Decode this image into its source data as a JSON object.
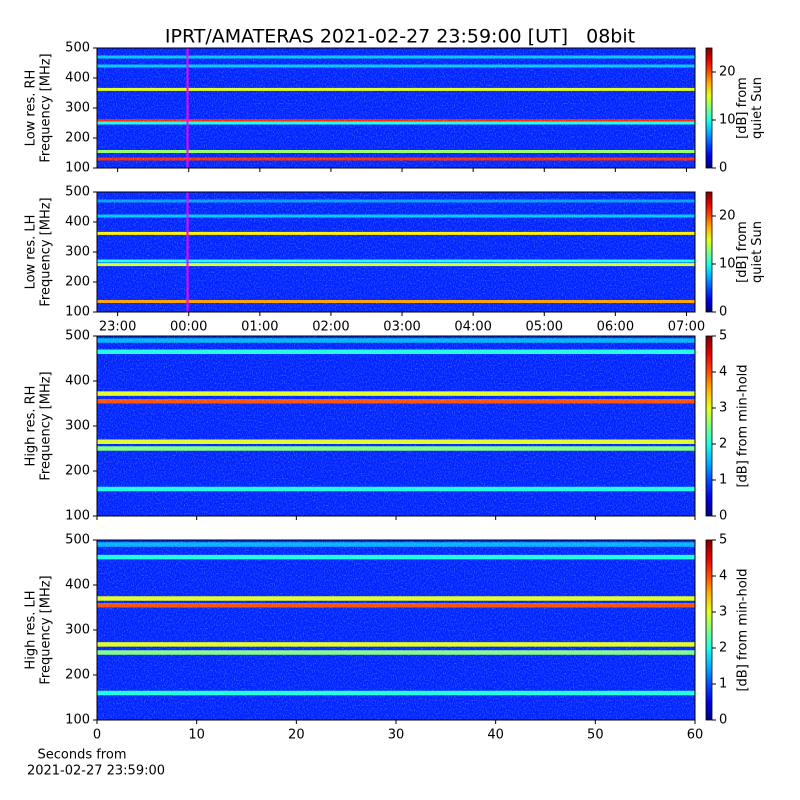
{
  "chart_data": [
    {
      "type": "heatmap",
      "title": "IPRT/AMATERAS 2021-02-27 23:59:00 [UT]   08bit",
      "ylabel": [
        "Low res. RH",
        "Frequency [MHz]"
      ],
      "xlim": [
        -1.29,
        7.12
      ],
      "xticks": [
        {
          "value": -1,
          "label": "23:00"
        },
        {
          "value": 0,
          "label": "00:00"
        },
        {
          "value": 1,
          "label": "01:00"
        },
        {
          "value": 2,
          "label": "02:00"
        },
        {
          "value": 3,
          "label": "03:00"
        },
        {
          "value": 4,
          "label": "04:00"
        },
        {
          "value": 5,
          "label": "05:00"
        },
        {
          "value": 6,
          "label": "06:00"
        },
        {
          "value": 7,
          "label": "07:00"
        }
      ],
      "show_xtick_labels": false,
      "marker_x": -0.017,
      "marker_color": "#ff00ff",
      "ylim": [
        100,
        500
      ],
      "yticks": [
        100,
        200,
        300,
        400,
        500
      ],
      "clim": [
        0,
        25
      ],
      "cticks": [
        0,
        10,
        20
      ],
      "clabel": [
        "[dB] from",
        "quiet Sun"
      ],
      "background": 4,
      "bands": [
        {
          "freq": 130,
          "level": 21
        },
        {
          "freq": 155,
          "level": 13
        },
        {
          "freq": 258,
          "level": 21
        },
        {
          "freq": 250,
          "level": 10
        },
        {
          "freq": 362,
          "level": 15
        },
        {
          "freq": 440,
          "level": 8
        },
        {
          "freq": 470,
          "level": 8
        }
      ]
    },
    {
      "type": "heatmap",
      "ylabel": [
        "Low res. LH",
        "Frequency [MHz]"
      ],
      "xlim": [
        -1.29,
        7.12
      ],
      "xticks": [
        {
          "value": -1,
          "label": "23:00"
        },
        {
          "value": 0,
          "label": "00:00"
        },
        {
          "value": 1,
          "label": "01:00"
        },
        {
          "value": 2,
          "label": "02:00"
        },
        {
          "value": 3,
          "label": "03:00"
        },
        {
          "value": 4,
          "label": "04:00"
        },
        {
          "value": 5,
          "label": "05:00"
        },
        {
          "value": 6,
          "label": "06:00"
        },
        {
          "value": 7,
          "label": "07:00"
        }
      ],
      "show_xtick_labels": true,
      "marker_x": -0.017,
      "marker_color": "#ff00ff",
      "ylim": [
        100,
        500
      ],
      "yticks": [
        100,
        200,
        300,
        400,
        500
      ],
      "clim": [
        0,
        25
      ],
      "cticks": [
        0,
        10,
        20
      ],
      "clabel": [
        "[dB] from",
        "quiet Sun"
      ],
      "background": 4,
      "bands": [
        {
          "freq": 135,
          "level": 18
        },
        {
          "freq": 258,
          "level": 15
        },
        {
          "freq": 270,
          "level": 10
        },
        {
          "freq": 362,
          "level": 16
        },
        {
          "freq": 420,
          "level": 8
        },
        {
          "freq": 470,
          "level": 7
        }
      ]
    },
    {
      "type": "heatmap",
      "ylabel": [
        "High res. RH",
        "Frequency [MHz]"
      ],
      "xlim": [
        0,
        60
      ],
      "xticks": [
        0,
        10,
        20,
        30,
        40,
        50,
        60
      ],
      "show_xtick_labels": false,
      "ylim": [
        100,
        500
      ],
      "yticks": [
        100,
        200,
        300,
        400,
        500
      ],
      "clim": [
        0,
        5
      ],
      "cticks": [
        0,
        1,
        2,
        3,
        4,
        5
      ],
      "clabel": [
        "[dB] from min-hold"
      ],
      "background": 0.8,
      "bands": [
        {
          "freq": 160,
          "level": 2
        },
        {
          "freq": 250,
          "level": 2.5
        },
        {
          "freq": 265,
          "level": 3
        },
        {
          "freq": 355,
          "level": 4
        },
        {
          "freq": 372,
          "level": 3
        },
        {
          "freq": 465,
          "level": 2
        },
        {
          "freq": 490,
          "level": 1.5
        }
      ]
    },
    {
      "type": "heatmap",
      "ylabel": [
        "High res. LH",
        "Frequency [MHz]"
      ],
      "xlim": [
        0,
        60
      ],
      "xticks": [
        0,
        10,
        20,
        30,
        40,
        50,
        60
      ],
      "show_xtick_labels": true,
      "xlabel": [
        "Seconds from",
        "2021-02-27 23:59:00"
      ],
      "ylim": [
        100,
        500
      ],
      "yticks": [
        100,
        200,
        300,
        400,
        500
      ],
      "clim": [
        0,
        5
      ],
      "cticks": [
        0,
        1,
        2,
        3,
        4,
        5
      ],
      "clabel": [
        "[dB] from min-hold"
      ],
      "background": 0.8,
      "bands": [
        {
          "freq": 160,
          "level": 2
        },
        {
          "freq": 250,
          "level": 2.5
        },
        {
          "freq": 268,
          "level": 3
        },
        {
          "freq": 355,
          "level": 4
        },
        {
          "freq": 370,
          "level": 3
        },
        {
          "freq": 462,
          "level": 2
        },
        {
          "freq": 490,
          "level": 1.5
        }
      ]
    }
  ]
}
